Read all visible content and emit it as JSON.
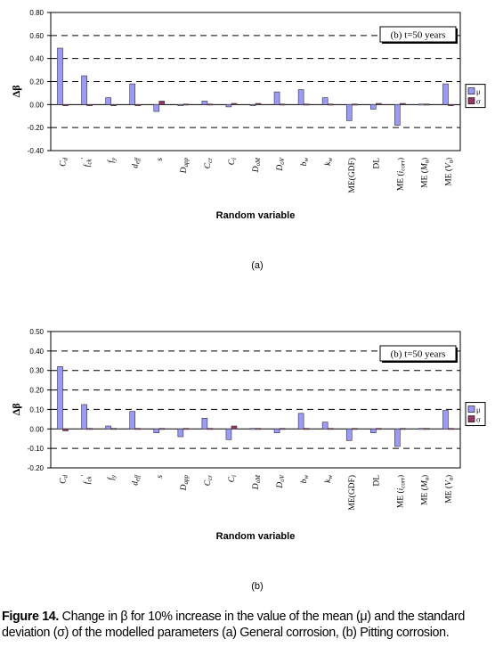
{
  "chart_data": [
    {
      "type": "bar",
      "panel_label": "(a)",
      "annotation": "(b) t=50 years",
      "xlabel": "Random variable",
      "ylabel": "Δβ",
      "ylim": [
        -0.4,
        0.8
      ],
      "yticks": [
        "-0.40",
        "-0.20",
        "0.00",
        "0.20",
        "0.40",
        "0.60",
        "0.80"
      ],
      "categories": [
        "Cd",
        "fck'",
        "fy",
        "deff",
        "s",
        "Dapp",
        "Ccr",
        "Ci",
        "DoM",
        "DoV",
        "bw",
        "kw",
        "ME(GDF)",
        "DL",
        "ME (icorr)",
        "ME (Mu)",
        "ME (Vu)"
      ],
      "grid": "dashed horizontal",
      "legend": "right",
      "series": [
        {
          "name": "μ",
          "color": "#9999ff",
          "values": [
            0.49,
            0.25,
            0.06,
            0.18,
            -0.06,
            -0.01,
            0.03,
            -0.02,
            -0.01,
            0.11,
            0.13,
            0.06,
            -0.14,
            -0.04,
            -0.18,
            0.0,
            0.18
          ]
        },
        {
          "name": "σ",
          "color": "#993366",
          "values": [
            -0.01,
            -0.01,
            -0.01,
            -0.01,
            0.03,
            0.0,
            0.0,
            0.01,
            0.01,
            0.0,
            0.0,
            0.0,
            0.0,
            0.01,
            0.01,
            0.0,
            -0.01
          ]
        }
      ]
    },
    {
      "type": "bar",
      "panel_label": "(b)",
      "annotation": "(b) t=50 years",
      "xlabel": "Random variable",
      "ylabel": "Δβ",
      "ylim": [
        -0.2,
        0.5
      ],
      "yticks": [
        "-0.20",
        "-0.10",
        "0.00",
        "0.10",
        "0.20",
        "0.30",
        "0.40",
        "0.50"
      ],
      "categories": [
        "Cd",
        "fck'",
        "fy",
        "deff",
        "s",
        "Dapp",
        "Ccr",
        "Ci",
        "DoM",
        "DoV",
        "bw",
        "kw",
        "ME(GDF)",
        "DL",
        "ME (icorr)",
        "ME (Mu)",
        "ME (Vu)"
      ],
      "grid": "dashed horizontal",
      "legend": "right",
      "series": [
        {
          "name": "μ",
          "color": "#9999ff",
          "values": [
            0.32,
            0.125,
            0.015,
            0.09,
            -0.02,
            -0.04,
            0.055,
            -0.055,
            -0.005,
            -0.02,
            0.08,
            0.035,
            -0.06,
            -0.02,
            -0.09,
            0.0,
            0.095
          ]
        },
        {
          "name": "σ",
          "color": "#993366",
          "values": [
            -0.01,
            0.0,
            0.0,
            -0.005,
            0.0,
            0.0,
            0.0,
            0.015,
            0.0,
            0.0,
            0.0,
            0.0,
            0.005,
            0.0,
            0.0,
            0.0,
            0.0
          ]
        }
      ]
    }
  ],
  "caption": {
    "label": "Figure 14.",
    "text": "Change in β for 10% increase in the value of the mean (μ) and the standard deviation (σ) of the modelled parameters (a) General corrosion, (b) Pitting corrosion."
  }
}
